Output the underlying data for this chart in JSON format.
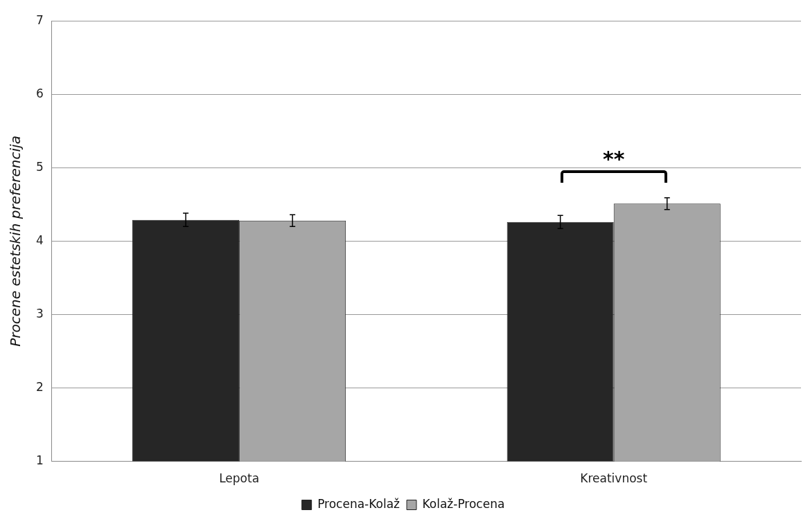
{
  "chart_data": {
    "type": "bar",
    "ylabel": "Procene estetskih preferencija",
    "categories": [
      "Lepota",
      "Kreativnost"
    ],
    "series": [
      {
        "name": "Procena-Kolaž",
        "color": "#262626",
        "values": [
          4.29,
          4.26
        ],
        "errors": [
          0.09,
          0.09
        ]
      },
      {
        "name": "Kolaž-Procena",
        "color": "#a6a6a6",
        "values": [
          4.28,
          4.51
        ],
        "errors": [
          0.08,
          0.08
        ]
      }
    ],
    "ylim": [
      1,
      7
    ],
    "yticks": [
      1,
      2,
      3,
      4,
      5,
      6,
      7
    ],
    "grid": "y",
    "legend": "bottom",
    "annotations": [
      "**"
    ]
  }
}
